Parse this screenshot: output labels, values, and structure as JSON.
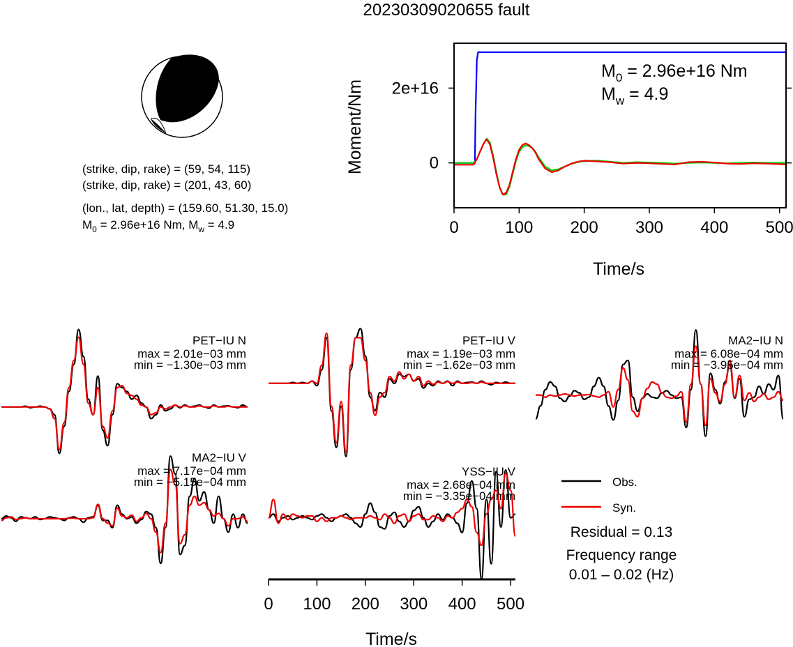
{
  "title": "20230309020655 fault",
  "mechanism": {
    "plane1": "(strike, dip, rake) = (59, 54, 115)",
    "plane2": "(strike, dip, rake) = (201, 43, 60)",
    "location": "(lon., lat, depth) = (159.60, 51.30, 15.0)",
    "m0_label": "M",
    "m0_sub": "0",
    "m0_value": " = 2.96e+16 Nm, M",
    "mw_sub": "w",
    "mw_value": " = 4.9"
  },
  "moment_panel": {
    "m0_sym": "M",
    "m0_sub": "0",
    "m0_text": " = 2.96e+16 Nm",
    "mw_sym": "M",
    "mw_sub": "w",
    "mw_text": " = 4.9"
  },
  "legend": {
    "obs": "Obs.",
    "syn": "Syn.",
    "residual": "Residual = 0.13",
    "freq_title": "Frequency range",
    "freq_value": "0.01 – 0.02 (Hz)"
  },
  "colors": {
    "moment": "#0000ff",
    "observed": "#000000",
    "synthetic": "#ee0000",
    "synthetic_stf": "#00cc00"
  },
  "chart_data": [
    {
      "type": "line",
      "title": "",
      "xlabel": "Time/s",
      "ylabel": "Moment/Nm",
      "xlim": [
        0,
        510
      ],
      "ylim": [
        -1.2e+16,
        3.2e+16
      ],
      "xticks": [
        "0",
        "100",
        "200",
        "300",
        "400",
        "500"
      ],
      "xtick_values": [
        0,
        100,
        200,
        300,
        400,
        500
      ],
      "yticks": [
        "0",
        "2e+16"
      ],
      "ytick_values": [
        0,
        2e+16
      ],
      "series": [
        {
          "name": "",
          "color": "#0000ff",
          "x": [
            0,
            32,
            33,
            35,
            37,
            510
          ],
          "y": [
            0,
            0,
            1.3e+16,
            2.75e+16,
            2.96e+16,
            2.96e+16
          ]
        },
        {
          "name": "",
          "color": "#00cc00",
          "x": [
            0,
            30,
            35,
            40,
            45,
            50,
            55,
            60,
            65,
            70,
            75,
            80,
            85,
            90,
            95,
            100,
            105,
            110,
            115,
            120,
            125,
            130,
            140,
            150,
            160,
            170,
            180,
            190,
            200,
            220,
            240,
            260,
            280,
            300,
            320,
            340,
            360,
            380,
            400,
            420,
            440,
            460,
            480,
            510
          ],
          "y": [
            0,
            0,
            1000000000000000.0,
            3000000000000000.0,
            5000000000000000.0,
            6500000000000000.0,
            5500000000000000.0,
            2000000000000000.0,
            -2500000000000000.0,
            -6500000000000000.0,
            -8500000000000000.0,
            -8500000000000000.0,
            -6500000000000000.0,
            -3000000000000000.0,
            500000000000000.0,
            3000000000000000.0,
            4200000000000000.0,
            4700000000000000.0,
            4500000000000000.0,
            4000000000000000.0,
            3000000000000000.0,
            1500000000000000.0,
            -1000000000000000.0,
            -2000000000000000.0,
            -1700000000000000.0,
            -1000000000000000.0,
            -300000000000000.0,
            200000000000000.0,
            500000000000000.0,
            600000000000000.0,
            300000000000000.0,
            0,
            200000000000000.0,
            100000000000000.0,
            0,
            -200000000000000.0,
            0,
            100000000000000.0,
            0,
            -100000000000000.0,
            0,
            100000000000000.0,
            0,
            0
          ]
        },
        {
          "name": "",
          "color": "#ee0000",
          "x": [
            0,
            30,
            35,
            40,
            45,
            50,
            55,
            60,
            65,
            70,
            75,
            80,
            85,
            90,
            95,
            100,
            105,
            110,
            115,
            120,
            125,
            130,
            140,
            150,
            160,
            170,
            180,
            190,
            200,
            220,
            240,
            260,
            280,
            300,
            320,
            340,
            360,
            380,
            400,
            420,
            440,
            460,
            480,
            510
          ],
          "y": [
            -500000000000000.0,
            -500000000000000.0,
            1000000000000000.0,
            3000000000000000.0,
            5000000000000000.0,
            6300000000000000.0,
            5000000000000000.0,
            1500000000000000.0,
            -3000000000000000.0,
            -6500000000000000.0,
            -8500000000000000.0,
            -8000000000000000.0,
            -6000000000000000.0,
            -2500000000000000.0,
            1000000000000000.0,
            3500000000000000.0,
            4800000000000000.0,
            5200000000000000.0,
            4800000000000000.0,
            4000000000000000.0,
            2800000000000000.0,
            1000000000000000.0,
            -1500000000000000.0,
            -2500000000000000.0,
            -2000000000000000.0,
            -1000000000000000.0,
            -200000000000000.0,
            300000000000000.0,
            600000000000000.0,
            400000000000000.0,
            200000000000000.0,
            -200000000000000.0,
            0,
            -100000000000000.0,
            -300000000000000.0,
            -400000000000000.0,
            200000000000000.0,
            300000000000000.0,
            100000000000000.0,
            -200000000000000.0,
            -300000000000000.0,
            -100000000000000.0,
            -200000000000000.0,
            -400000000000000.0
          ]
        }
      ]
    },
    {
      "type": "line",
      "title": "PET−IU N",
      "max_label": "max = 2.01e−03 mm",
      "min_label": "min = −1.30e−03 mm",
      "xlim": [
        0,
        510
      ],
      "ylim": [
        -1.3,
        2.01
      ],
      "observed_y": [
        0,
        0,
        0,
        0,
        0,
        0.02,
        -0.02,
        0,
        0.02,
        0,
        -0.05,
        -0.2,
        -1.2,
        -0.5,
        0.4,
        1.1,
        2.0,
        1.3,
        0.2,
        -0.2,
        0.8,
        -0.6,
        -1.0,
        -0.2,
        0.6,
        0.5,
        0.4,
        0.2,
        0.3,
        0.1,
        0,
        -0.3,
        -0.2,
        0.05,
        -0.1,
        -0.05,
        0.05,
        -0.02,
        0.05,
        0,
        0.02,
        0.05,
        0,
        -0.03,
        0.05,
        0,
        0.02,
        0.03,
        0,
        -0.02,
        0.05,
        0
      ],
      "synthetic_y": [
        0,
        0,
        0,
        0,
        0,
        0,
        0,
        0,
        0,
        0,
        -0.05,
        -0.3,
        -1.1,
        -0.4,
        0.5,
        1.2,
        1.8,
        1.1,
        0.1,
        -0.2,
        0.5,
        -0.5,
        -0.8,
        -0.1,
        0.5,
        0.55,
        0.35,
        0.3,
        0.2,
        0.05,
        0,
        -0.2,
        -0.15,
        0,
        -0.05,
        0,
        0.05,
        0,
        0.03,
        0,
        0,
        0.03,
        0,
        0,
        0.03,
        0,
        0,
        0.02,
        0,
        0,
        0,
        0
      ]
    },
    {
      "type": "line",
      "title": "PET−IU V",
      "max_label": "max = 1.19e−03 mm",
      "min_label": "min = −1.62e−03 mm",
      "xlim": [
        0,
        510
      ],
      "ylim": [
        -1.62,
        1.19
      ],
      "observed_y": [
        0,
        0,
        0,
        0,
        0,
        0.02,
        0,
        0.02,
        0,
        0.05,
        -0.05,
        0.3,
        1.0,
        -0.6,
        -1.4,
        -0.5,
        -1.6,
        0.3,
        1.0,
        1.2,
        0.6,
        -0.3,
        -0.6,
        -0.2,
        -0.3,
        0.1,
        0,
        0.2,
        0.15,
        0.2,
        0.05,
        0.1,
        -0.1,
        0,
        -0.05,
        0.05,
        0,
        0.05,
        -0.05,
        0.05,
        0,
        0.02,
        0.03,
        0,
        0.05,
        0,
        -0.03,
        0.02,
        0,
        0.03,
        0,
        0
      ],
      "synthetic_y": [
        0,
        0,
        0,
        0,
        0,
        0,
        0,
        0,
        0,
        0.05,
        0,
        0.4,
        1.1,
        -0.5,
        -1.3,
        -0.4,
        -1.5,
        0.4,
        1.0,
        1.0,
        0.5,
        -0.2,
        -0.7,
        -0.3,
        -0.2,
        0.15,
        0.05,
        0.25,
        0.1,
        0.2,
        0.05,
        0.15,
        -0.05,
        0.05,
        -0.02,
        0.03,
        0,
        0.04,
        0,
        0.03,
        0,
        0,
        0.02,
        0,
        0.03,
        0,
        0,
        0,
        0,
        0,
        0,
        0
      ]
    },
    {
      "type": "line",
      "title": "MA2−IU N",
      "max_label": "max = 6.08e−04 mm",
      "min_label": "min = −3.95e−04 mm",
      "xlim": [
        0,
        510
      ],
      "ylim": [
        -3.95,
        6.08
      ],
      "observed_y": [
        -2.2,
        -1.0,
        0.5,
        1.2,
        0.8,
        -0.3,
        -0.6,
        -0.1,
        0.4,
        0.2,
        -0.4,
        -0.2,
        0.8,
        1.6,
        0.8,
        -1.0,
        -2.3,
        -0.5,
        2.8,
        3.2,
        -0.2,
        -1.5,
        -0.3,
        0.1,
        -0.2,
        -0.3,
        0.2,
        0.4,
        0,
        -0.3,
        -0.2,
        -3.0,
        0.5,
        6.0,
        1.0,
        -3.8,
        2.0,
        0.5,
        -0.8,
        1.2,
        2.8,
        -0.3,
        1.5,
        -2.0,
        -0.4,
        -0.2,
        0.8,
        0.1,
        1.0,
        0.5,
        1.8,
        -2.2
      ],
      "synthetic_y": [
        0,
        0,
        -0.2,
        0,
        -0.1,
        0,
        0.1,
        0,
        -0.1,
        0,
        0,
        0.05,
        -0.1,
        -0.2,
        0,
        0.3,
        -1.1,
        0.5,
        2.5,
        1.4,
        -1.5,
        -2.0,
        -0.3,
        0.6,
        1.2,
        1.0,
        0.2,
        -0.2,
        -0.3,
        -0.1,
        0.3,
        -2.5,
        1.0,
        4.5,
        1.0,
        -2.8,
        1.5,
        0.2,
        -0.6,
        1.0,
        3.2,
        -0.2,
        1.8,
        -0.5,
        0.2,
        -0.6,
        -0.2,
        0.1,
        -0.4,
        -0.2,
        0.3,
        -0.5
      ]
    },
    {
      "type": "line",
      "title": "MA2−IU V",
      "max_label": "max = 7.17e−04 mm",
      "min_label": "min = −5.15e−04 mm",
      "xlim": [
        0,
        510
      ],
      "ylim": [
        -5.15,
        7.17
      ],
      "observed_y": [
        0,
        0.3,
        0.1,
        -0.3,
        0.2,
        0.1,
        0,
        0.2,
        -0.1,
        0,
        0.2,
        0.1,
        0,
        -0.2,
        0.1,
        0.2,
        0,
        -0.4,
        0.1,
        0.2,
        1.5,
        -0.2,
        -0.2,
        -1.0,
        1.5,
        0.5,
        0,
        0.2,
        -0.5,
        -0.1,
        0.8,
        0.5,
        -1.0,
        -5.0,
        -1.0,
        7.0,
        5.0,
        -4.0,
        -3.0,
        2.5,
        4.5,
        2.0,
        3.0,
        1.0,
        -0.5,
        2.5,
        0,
        -1.5,
        0.5,
        -1.0,
        0.5,
        -0.5
      ],
      "synthetic_y": [
        -0.2,
        0.1,
        0.2,
        -0.1,
        0,
        0.1,
        0,
        0,
        0,
        0,
        0,
        0,
        0,
        0,
        0.05,
        0.05,
        0,
        0,
        0,
        0.1,
        1.6,
        0,
        -0.5,
        -0.8,
        1.2,
        0.3,
        0.1,
        0.4,
        -0.3,
        0.1,
        0.6,
        0,
        -1.5,
        -3.8,
        -0.5,
        5.5,
        3.8,
        -2.8,
        -1.8,
        1.5,
        2.5,
        1.5,
        1.8,
        1.0,
        0.3,
        0.6,
        0,
        -0.8,
        0,
        0,
        0.2,
        -0.3
      ]
    },
    {
      "type": "line",
      "title": "YSS−IU V",
      "max_label": "max = 2.68e−04 mm",
      "min_label": "min = −3.35e−04 mm",
      "xticks": [
        "0",
        "100",
        "200",
        "300",
        "400",
        "500"
      ],
      "xtick_values": [
        0,
        100,
        200,
        300,
        400,
        500
      ],
      "xlabel": "Time/s",
      "xlim": [
        0,
        510
      ],
      "ylim": [
        -3.35,
        2.68
      ],
      "observed_y": [
        0,
        0.2,
        -0.2,
        0,
        0.1,
        -0.1,
        0,
        0.1,
        0,
        -0.1,
        0.1,
        0.2,
        0,
        -0.2,
        0,
        0.1,
        0.2,
        0,
        -0.3,
        -0.5,
        0.2,
        0.8,
        0.3,
        -0.5,
        -0.6,
        0.1,
        0.3,
        -0.2,
        -0.5,
        -0.2,
        0.4,
        0.6,
        0,
        -0.5,
        -0.2,
        0.2,
        -0.1,
        0.2,
        0,
        -0.3,
        -0.8,
        0.8,
        2.0,
        0.5,
        -3.3,
        1.0,
        -2.5,
        2.5,
        -0.5,
        2.6,
        0,
        0.2
      ],
      "synthetic_y": [
        0,
        1.0,
        -0.3,
        0.2,
        -0.1,
        0.2,
        0.1,
        0,
        0.1,
        0.1,
        -0.2,
        0,
        -0.2,
        0,
        0,
        0.1,
        0,
        -0.1,
        0,
        0,
        0,
        0.1,
        0,
        -0.1,
        0.2,
        0,
        -0.3,
        0.1,
        0.2,
        -0.2,
        0.1,
        0.2,
        -0.1,
        -0.1,
        0.1,
        0,
        -0.2,
        0.1,
        0,
        0.3,
        0.5,
        1.0,
        0.6,
        -0.8,
        -1.5,
        0.2,
        1.0,
        1.5,
        0.5,
        2.4,
        1.5,
        -1.0
      ]
    }
  ]
}
